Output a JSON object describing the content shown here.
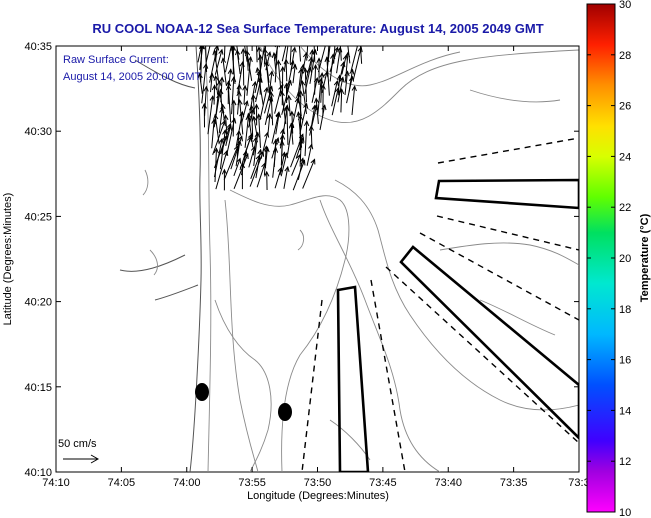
{
  "title": "RU COOL  NOAA-12  Sea Surface Temperature:  August 14, 2005 2049 GMT",
  "annotation": {
    "line1": "Raw Surface Current:",
    "line2": "August 14, 2005 20:00 GMT"
  },
  "axes": {
    "xlabel": "Longitude (Degrees:Minutes)",
    "ylabel": "Latitude (Degrees:Minutes)",
    "x_ticks": [
      "74:10",
      "74:05",
      "74:00",
      "73:55",
      "73:50",
      "73:45",
      "73:40",
      "73:35",
      "73:3"
    ],
    "y_ticks": [
      "40:35",
      "40:30",
      "40:25",
      "40:20",
      "40:15",
      "40:10"
    ]
  },
  "colorbar": {
    "label": "Temperature (°C)",
    "ticks": [
      "30",
      "28",
      "26",
      "24",
      "22",
      "20",
      "18",
      "16",
      "14",
      "12",
      "10"
    ],
    "min": 10,
    "max": 30
  },
  "scale": {
    "label": "50 cm/s"
  },
  "colors": {
    "title": "#1a1aa8",
    "annotation": "#1a1aa8",
    "contour": "#8a8a8a",
    "vector": "#000000"
  }
}
